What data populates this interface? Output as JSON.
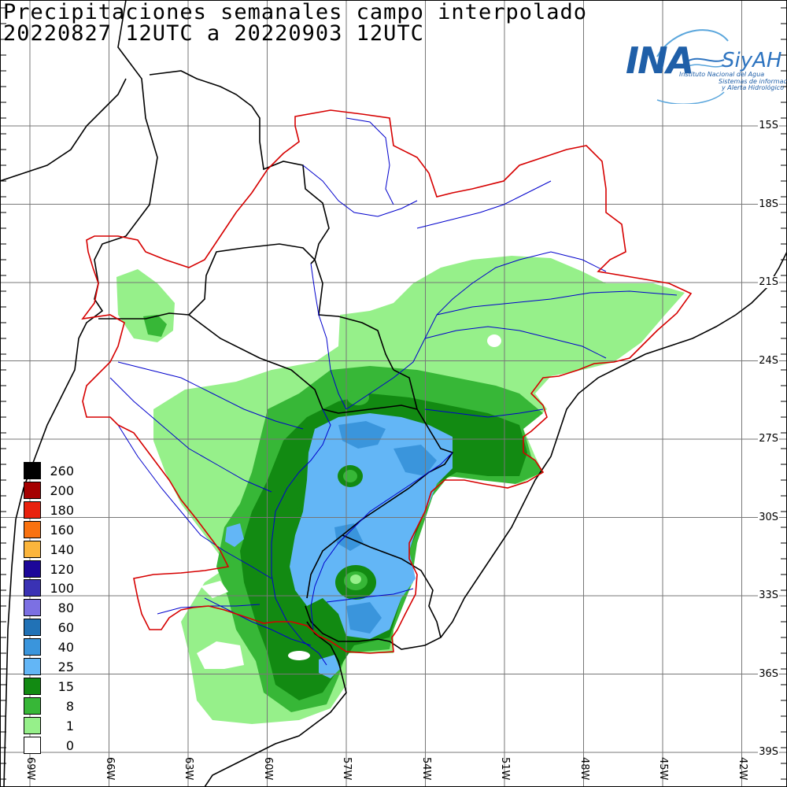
{
  "title": {
    "line1": "Precipitaciones semanales campo interpolado",
    "line2": "20220827 12UTC a 20220903 12UTC"
  },
  "lat_labels": [
    "15S",
    "18S",
    "21S",
    "24S",
    "27S",
    "30S",
    "33S",
    "36S",
    "39S"
  ],
  "lon_labels": [
    "69W",
    "66W",
    "63W",
    "60W",
    "57W",
    "54W",
    "51W",
    "48W",
    "45W",
    "42W"
  ],
  "legend": [
    {
      "value": "260",
      "color": "#000000"
    },
    {
      "value": "200",
      "color": "#a50000"
    },
    {
      "value": "180",
      "color": "#e8220e"
    },
    {
      "value": "160",
      "color": "#f97210"
    },
    {
      "value": "140",
      "color": "#fbb53c"
    },
    {
      "value": "120",
      "color": "#1c0799"
    },
    {
      "value": "100",
      "color": "#3a32b4"
    },
    {
      "value": "80",
      "color": "#7c70e3"
    },
    {
      "value": "60",
      "color": "#2172b6"
    },
    {
      "value": "40",
      "color": "#3a95dc"
    },
    {
      "value": "25",
      "color": "#63b6f6"
    },
    {
      "value": "15",
      "color": "#128a12"
    },
    {
      "value": "8",
      "color": "#37b737"
    },
    {
      "value": "1",
      "color": "#96f08a"
    },
    {
      "value": "0",
      "color": "#ffffff"
    }
  ],
  "logo": {
    "ina": "INA",
    "siyah": "SiyAH",
    "subtitle1": "Instituto Nacional del Agua",
    "subtitle2": "Sistemas de información",
    "subtitle3": "y Alerta Hidrológico"
  },
  "colors": {
    "basin_outline": "#d60000",
    "rivers": "#0000cc",
    "borders": "#000000",
    "grid": "#777777"
  }
}
